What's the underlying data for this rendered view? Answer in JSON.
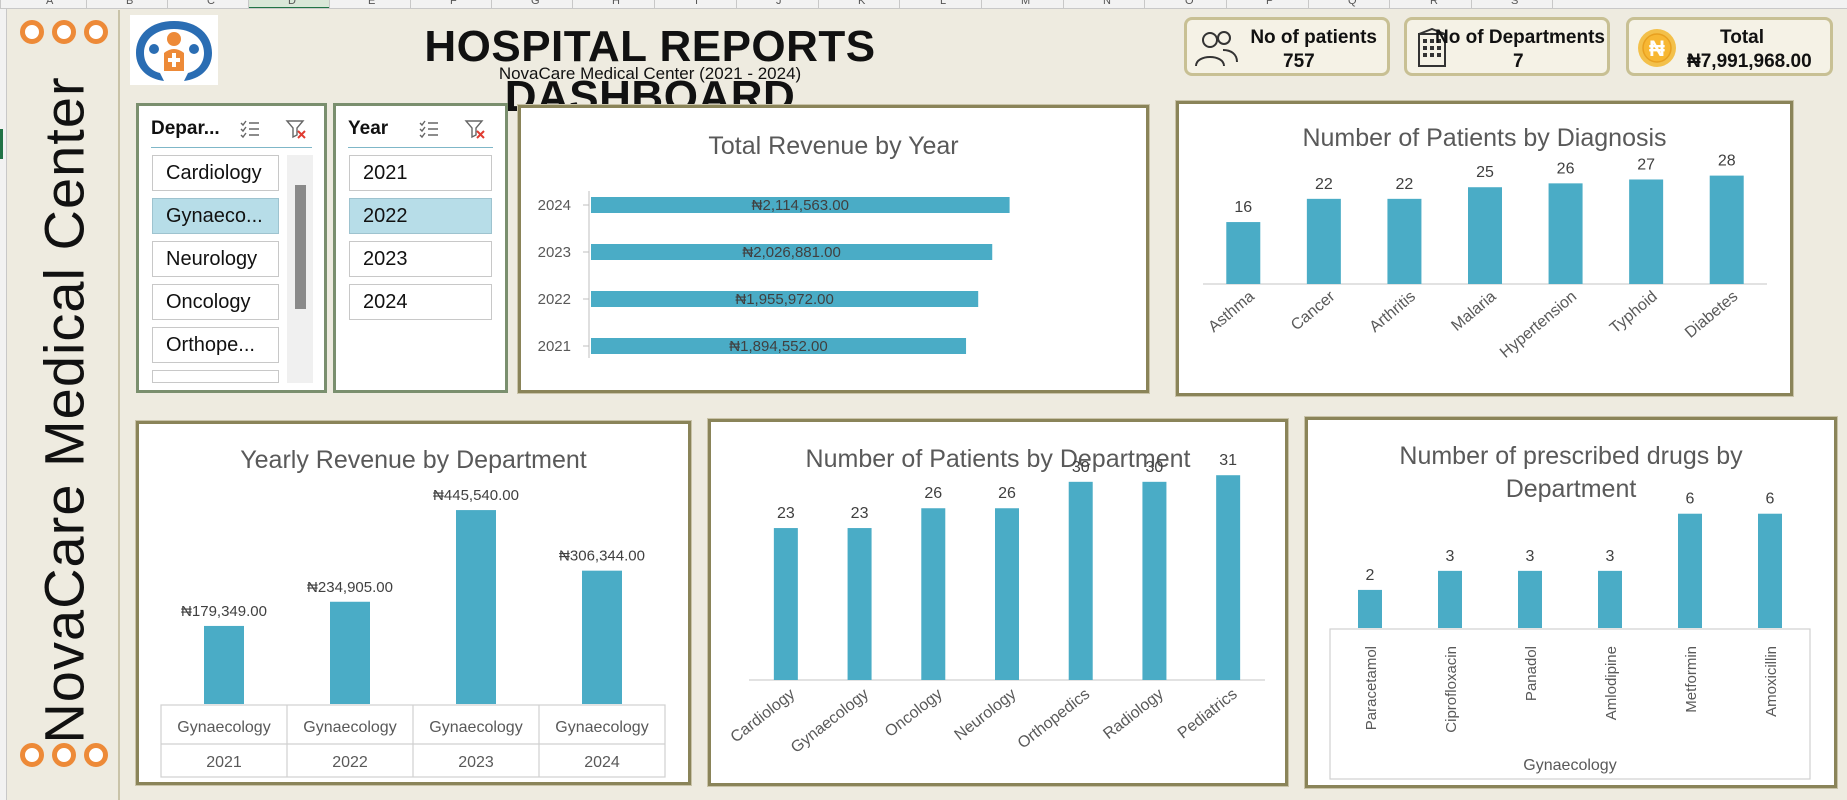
{
  "sheet": {
    "columns": [
      "A",
      "B",
      "C",
      "D",
      "E",
      "F",
      "G",
      "H",
      "I",
      "J",
      "K",
      "L",
      "M",
      "N",
      "O",
      "P",
      "Q",
      "R",
      "S"
    ],
    "selected_column": "D"
  },
  "sidebar": {
    "vertical_title": "NovaCare Medical Center"
  },
  "header": {
    "title": "HOSPITAL REPORTS DASHBOARD",
    "subtitle": "NovaCare Medical Center (2021 - 2024)"
  },
  "kpis": [
    {
      "label": "No of patients",
      "value": "757",
      "icon": "people-icon"
    },
    {
      "label": "No of Departments",
      "value": "7",
      "icon": "building-icon"
    },
    {
      "label": "Total",
      "value": "₦7,991,968.00",
      "icon": "naira-coin-icon"
    }
  ],
  "slicers": {
    "department": {
      "title": "Depar...",
      "items": [
        "Cardiology",
        "Gynaeco...",
        "Neurology",
        "Oncology",
        "Orthope..."
      ],
      "selected": "Gynaeco..."
    },
    "year": {
      "title": "Year",
      "items": [
        "2021",
        "2022",
        "2023",
        "2024"
      ],
      "selected": "2022"
    }
  },
  "colors": {
    "bar": "#4aacc6",
    "panel_border": "#8a8459",
    "accent": "#ed8a38",
    "slicer_selected": "#b7dde8"
  },
  "chart_data": [
    {
      "id": "revenue-by-year",
      "type": "bar",
      "orientation": "horizontal",
      "title": "Total Revenue by Year",
      "categories": [
        "2021",
        "2022",
        "2023",
        "2024"
      ],
      "values": [
        1894552,
        1955972,
        2026881,
        2114563
      ],
      "labels": [
        "₦1,894,552.00",
        "₦1,955,972.00",
        "₦2,026,881.00",
        "₦2,114,563.00"
      ]
    },
    {
      "id": "patients-by-diagnosis",
      "type": "bar",
      "title": "Number of Patients by Diagnosis",
      "categories": [
        "Asthma",
        "Cancer",
        "Arthritis",
        "Malaria",
        "Hypertension",
        "Typhoid",
        "Diabetes"
      ],
      "values": [
        16,
        22,
        22,
        25,
        26,
        27,
        28
      ]
    },
    {
      "id": "yearly-revenue-by-department",
      "type": "bar",
      "title": "Yearly Revenue by Department",
      "categories": [
        [
          "Gynaecology",
          "2021"
        ],
        [
          "Gynaecology",
          "2022"
        ],
        [
          "Gynaecology",
          "2023"
        ],
        [
          "Gynaecology",
          "2024"
        ]
      ],
      "values": [
        179349,
        234905,
        445540,
        306344
      ],
      "labels": [
        "₦179,349.00",
        "₦234,905.00",
        "₦445,540.00",
        "₦306,344.00"
      ]
    },
    {
      "id": "patients-by-department",
      "type": "bar",
      "title": "Number of Patients by Department",
      "categories": [
        "Cardiology",
        "Gynaecology",
        "Oncology",
        "Neurology",
        "Orthopedics",
        "Radiology",
        "Pediatrics"
      ],
      "values": [
        23,
        23,
        26,
        26,
        30,
        30,
        31
      ]
    },
    {
      "id": "drugs-by-department",
      "type": "bar",
      "title": "Number of prescribed drugs by Department",
      "categories": [
        "Paracetamol",
        "Ciprofloxacin",
        "Panadol",
        "Amlodipine",
        "Metformin",
        "Amoxicillin"
      ],
      "group_label": "Gynaecology",
      "values": [
        2,
        3,
        3,
        3,
        6,
        6
      ]
    }
  ]
}
